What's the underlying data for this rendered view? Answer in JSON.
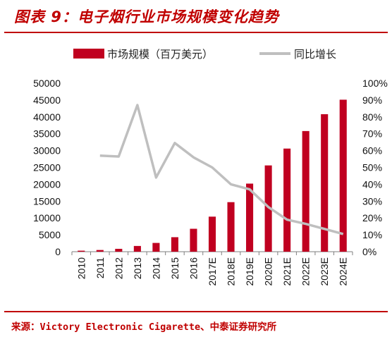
{
  "title": "图表 9：电子烟行业市场规模变化趋势",
  "source": "来源：Victory Electronic Cigarette、中泰证券研究所",
  "colors": {
    "accent": "#c00000",
    "bar": "#c00020",
    "line": "#bfbfbf"
  },
  "chart_data": {
    "type": "bar+line",
    "categories": [
      "2010",
      "2011",
      "2012",
      "2013",
      "2014",
      "2015",
      "2016",
      "2017E",
      "2018E",
      "2019E",
      "2020E",
      "2021E",
      "2022E",
      "2023E",
      "2024E"
    ],
    "series": [
      {
        "name": "市场规模（百万美元）",
        "type": "bar",
        "axis": "left",
        "values": [
          300,
          500,
          850,
          1700,
          2600,
          4300,
          6800,
          10400,
          14700,
          20200,
          25600,
          30600,
          35800,
          40800,
          45100
        ]
      },
      {
        "name": "同比增长",
        "type": "line",
        "axis": "right",
        "values": [
          null,
          0.57,
          0.565,
          0.87,
          0.44,
          0.645,
          0.56,
          0.5,
          0.4,
          0.37,
          0.265,
          0.19,
          0.165,
          0.135,
          0.105
        ]
      }
    ],
    "y_left": {
      "min": 0,
      "max": 50000,
      "ticks": [
        "0",
        "5000",
        "10000",
        "15000",
        "20000",
        "25000",
        "30000",
        "35000",
        "40000",
        "45000",
        "50000"
      ]
    },
    "y_right": {
      "min": 0,
      "max": 1,
      "ticks": [
        "0%",
        "10%",
        "20%",
        "30%",
        "40%",
        "50%",
        "60%",
        "70%",
        "80%",
        "90%",
        "100%"
      ]
    },
    "grid": false,
    "legend": "top"
  }
}
